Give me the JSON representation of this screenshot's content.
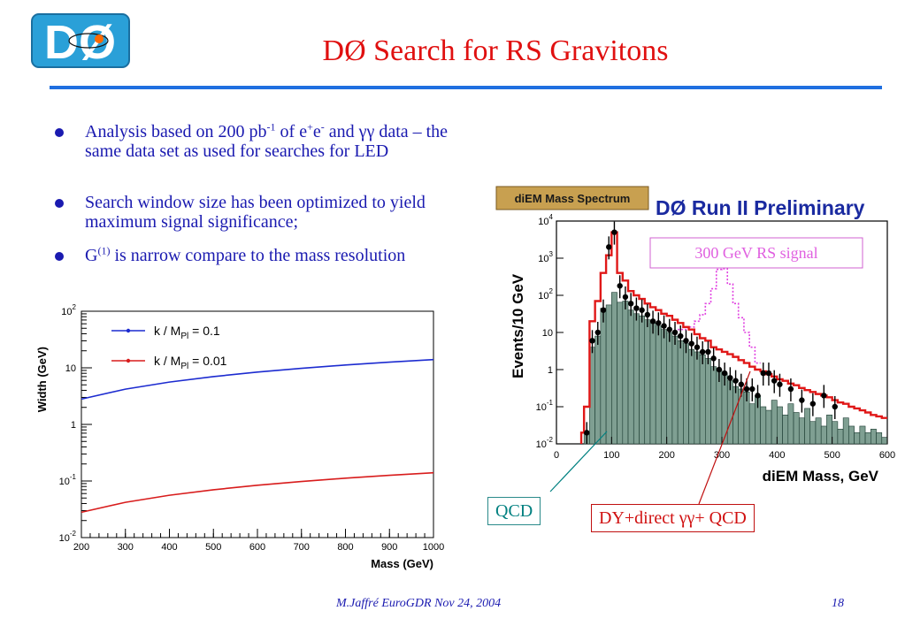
{
  "slide": {
    "title": "DØ Search for RS Gravitons",
    "footer": "M.Jaffré     EuroGDR   Nov 24, 2004",
    "page_number": "18",
    "accent_color": "#1f6fe0",
    "title_color": "#e01010",
    "text_color": "#1a1ab0"
  },
  "bullets": {
    "b1": {
      "p1": "Analysis based on 200 pb",
      "s1": "-1",
      "p2": " of e",
      "s2": "+",
      "p3": "e",
      "s3": "-",
      "p4": " and γγ data – the same data set as used for searches for LED"
    },
    "b2": "Search window size has been optimized to yield maximum signal significance;",
    "b3": {
      "p1": "G",
      "s1": "(1)",
      "p2": "  is narrow compare to the mass resolution"
    }
  },
  "callouts": {
    "qcd": "QCD",
    "dy": "DY+direct γγ+ QCD"
  },
  "chart_data": [
    {
      "type": "line",
      "xlabel": "Mass (GeV)",
      "ylabel": "Width (GeV)",
      "y_scale": "log",
      "xlim": [
        200,
        1000
      ],
      "ylim": [
        0.01,
        100
      ],
      "x_ticks": [
        "200",
        "300",
        "400",
        "500",
        "600",
        "700",
        "800",
        "900",
        "1000"
      ],
      "y_ticks": [
        "10^-2",
        "10^-1",
        "1",
        "10",
        "10^2"
      ],
      "x": [
        200,
        300,
        400,
        500,
        600,
        700,
        800,
        900,
        1000
      ],
      "series": [
        {
          "name": "k / M_Pl = 0.1",
          "color": "#1c2bd0",
          "values": [
            2.8,
            4.2,
            5.6,
            7.0,
            8.4,
            9.8,
            11.2,
            12.6,
            14.0
          ]
        },
        {
          "name": "k / M_Pl = 0.01",
          "color": "#d81c1c",
          "values": [
            0.028,
            0.042,
            0.056,
            0.07,
            0.084,
            0.098,
            0.112,
            0.126,
            0.14
          ]
        }
      ],
      "grid": false,
      "legend": "top-left"
    },
    {
      "type": "area",
      "label_box": "diEM Mass Spectrum",
      "title": "DØ Run II Preliminary",
      "xlabel": "diEM Mass, GeV",
      "ylabel": "Events/10 GeV",
      "y_scale": "log",
      "xlim": [
        0,
        600
      ],
      "ylim": [
        0.01,
        10000
      ],
      "x_ticks": [
        "0",
        "100",
        "200",
        "300",
        "400",
        "500",
        "600"
      ],
      "y_ticks": [
        "10^-2",
        "10^-1",
        "1",
        "10",
        "10^2",
        "10^3",
        "10^4"
      ],
      "signal_label": "300 GeV RS signal",
      "qcd_bins": [
        [
          50,
          60,
          0.02
        ],
        [
          60,
          70,
          4
        ],
        [
          70,
          80,
          8
        ],
        [
          80,
          90,
          45
        ],
        [
          90,
          100,
          55
        ],
        [
          100,
          110,
          120
        ],
        [
          110,
          120,
          65
        ],
        [
          120,
          130,
          70
        ],
        [
          130,
          140,
          40
        ],
        [
          140,
          150,
          32
        ],
        [
          150,
          160,
          28
        ],
        [
          160,
          170,
          22
        ],
        [
          170,
          180,
          18
        ],
        [
          180,
          190,
          15
        ],
        [
          190,
          200,
          12
        ],
        [
          200,
          210,
          10
        ],
        [
          210,
          220,
          8
        ],
        [
          220,
          230,
          6
        ],
        [
          230,
          240,
          5
        ],
        [
          240,
          250,
          3.5
        ],
        [
          250,
          260,
          3
        ],
        [
          260,
          270,
          2.5
        ],
        [
          270,
          280,
          2
        ],
        [
          280,
          290,
          1.2
        ],
        [
          290,
          300,
          1
        ],
        [
          300,
          310,
          0.8
        ],
        [
          310,
          320,
          0.5
        ],
        [
          320,
          330,
          0.35
        ],
        [
          330,
          340,
          0.3
        ],
        [
          340,
          350,
          0.25
        ],
        [
          350,
          360,
          0.12
        ],
        [
          360,
          370,
          0.2
        ],
        [
          370,
          380,
          0.1
        ],
        [
          380,
          390,
          0.08
        ],
        [
          390,
          400,
          0.15
        ],
        [
          400,
          410,
          0.1
        ],
        [
          410,
          420,
          0.06
        ],
        [
          420,
          430,
          0.12
        ],
        [
          430,
          440,
          0.07
        ],
        [
          440,
          450,
          0.05
        ],
        [
          450,
          460,
          0.09
        ],
        [
          460,
          470,
          0.04
        ],
        [
          470,
          480,
          0.05
        ],
        [
          480,
          490,
          0.03
        ],
        [
          490,
          500,
          0.06
        ],
        [
          500,
          510,
          0.04
        ],
        [
          510,
          520,
          0.025
        ],
        [
          520,
          530,
          0.05
        ],
        [
          530,
          540,
          0.03
        ],
        [
          540,
          550,
          0.02
        ],
        [
          550,
          560,
          0.03
        ],
        [
          560,
          570,
          0.02
        ],
        [
          570,
          580,
          0.025
        ],
        [
          580,
          590,
          0.02
        ],
        [
          590,
          600,
          0.015
        ]
      ],
      "total_bins": [
        [
          45,
          50,
          0.02
        ],
        [
          50,
          60,
          0.1
        ],
        [
          60,
          70,
          20
        ],
        [
          70,
          80,
          70
        ],
        [
          80,
          90,
          400
        ],
        [
          90,
          100,
          1200
        ],
        [
          100,
          110,
          5000
        ],
        [
          110,
          120,
          400
        ],
        [
          120,
          130,
          250
        ],
        [
          130,
          140,
          130
        ],
        [
          140,
          150,
          100
        ],
        [
          150,
          160,
          80
        ],
        [
          160,
          170,
          60
        ],
        [
          170,
          180,
          48
        ],
        [
          180,
          190,
          40
        ],
        [
          190,
          200,
          32
        ],
        [
          200,
          210,
          28
        ],
        [
          210,
          220,
          22
        ],
        [
          220,
          230,
          18
        ],
        [
          230,
          240,
          14
        ],
        [
          240,
          250,
          12
        ],
        [
          250,
          260,
          9
        ],
        [
          260,
          270,
          7
        ],
        [
          270,
          280,
          6
        ],
        [
          280,
          290,
          4
        ],
        [
          290,
          300,
          3.5
        ],
        [
          300,
          310,
          3
        ],
        [
          310,
          320,
          2.6
        ],
        [
          320,
          330,
          2.2
        ],
        [
          330,
          340,
          1.8
        ],
        [
          340,
          350,
          1.5
        ],
        [
          350,
          360,
          1.2
        ],
        [
          360,
          370,
          1.0
        ],
        [
          370,
          380,
          0.9
        ],
        [
          380,
          390,
          0.75
        ],
        [
          390,
          400,
          0.65
        ],
        [
          400,
          410,
          0.55
        ],
        [
          410,
          420,
          0.5
        ],
        [
          420,
          430,
          0.42
        ],
        [
          430,
          440,
          0.38
        ],
        [
          440,
          450,
          0.32
        ],
        [
          450,
          460,
          0.28
        ],
        [
          460,
          470,
          0.25
        ],
        [
          470,
          480,
          0.22
        ],
        [
          480,
          490,
          0.2
        ],
        [
          490,
          500,
          0.18
        ],
        [
          500,
          510,
          0.15
        ],
        [
          510,
          520,
          0.13
        ],
        [
          520,
          530,
          0.12
        ],
        [
          530,
          540,
          0.1
        ],
        [
          540,
          550,
          0.09
        ],
        [
          550,
          560,
          0.08
        ],
        [
          560,
          570,
          0.07
        ],
        [
          570,
          580,
          0.06
        ],
        [
          580,
          590,
          0.055
        ],
        [
          590,
          600,
          0.05
        ]
      ],
      "signal_bins": [
        [
          220,
          240,
          12
        ],
        [
          240,
          250,
          14
        ],
        [
          250,
          260,
          20
        ],
        [
          260,
          270,
          30
        ],
        [
          270,
          280,
          60
        ],
        [
          280,
          290,
          150
        ],
        [
          290,
          300,
          500
        ],
        [
          300,
          310,
          520
        ],
        [
          310,
          320,
          200
        ],
        [
          320,
          330,
          60
        ],
        [
          330,
          340,
          25
        ],
        [
          340,
          350,
          10
        ],
        [
          350,
          360,
          4
        ],
        [
          360,
          370,
          1.5
        ]
      ],
      "data_points": [
        [
          55,
          0.02
        ],
        [
          65,
          6
        ],
        [
          75,
          10
        ],
        [
          85,
          40
        ],
        [
          95,
          2000
        ],
        [
          105,
          5000
        ],
        [
          115,
          180
        ],
        [
          125,
          90
        ],
        [
          135,
          60
        ],
        [
          145,
          45
        ],
        [
          155,
          40
        ],
        [
          165,
          30
        ],
        [
          175,
          20
        ],
        [
          185,
          18
        ],
        [
          195,
          15
        ],
        [
          205,
          12
        ],
        [
          215,
          10
        ],
        [
          225,
          8
        ],
        [
          235,
          6
        ],
        [
          245,
          5
        ],
        [
          255,
          4
        ],
        [
          265,
          3
        ],
        [
          275,
          3
        ],
        [
          285,
          2
        ],
        [
          295,
          1
        ],
        [
          305,
          0.8
        ],
        [
          315,
          0.6
        ],
        [
          325,
          0.5
        ],
        [
          335,
          0.4
        ],
        [
          345,
          0.3
        ],
        [
          355,
          0.3
        ],
        [
          365,
          0.2
        ],
        [
          375,
          0.8
        ],
        [
          385,
          0.8
        ],
        [
          395,
          0.5
        ],
        [
          405,
          0.4
        ],
        [
          425,
          0.3
        ],
        [
          445,
          0.15
        ],
        [
          465,
          0.12
        ],
        [
          485,
          0.2
        ],
        [
          505,
          0.1
        ]
      ]
    }
  ]
}
